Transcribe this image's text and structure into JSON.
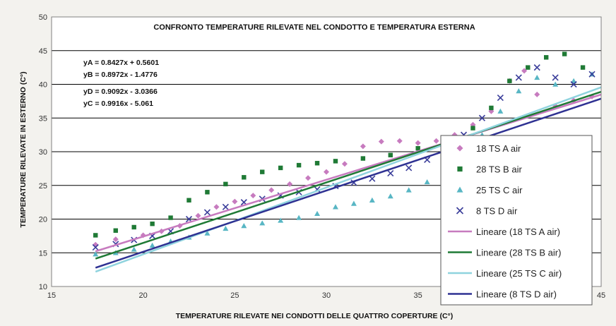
{
  "chart_data": {
    "type": "scatter",
    "title": "CONFRONTO TEMPERATURE RILEVATE NEL CONDOTTO E TEMPERATURA ESTERNA",
    "xlabel": "TEMPERATURE RILEVATE NEI CONDOTTI DELLE QUATTRO COPERTURE (C°)",
    "ylabel": "TEMPERATURE RILEVATE IN ESTERNO (C°)",
    "xlim": [
      15,
      45
    ],
    "ylim": [
      10,
      50
    ],
    "xticks": [
      "15",
      "20",
      "25",
      "30",
      "35",
      "40",
      "45"
    ],
    "yticks": [
      "10",
      "15",
      "20",
      "25",
      "30",
      "35",
      "40",
      "45",
      "50"
    ],
    "grid": "horizontal",
    "legend_position": "right",
    "equations": [
      "yA = 0.8427x + 0.5601",
      "yB = 0.8972x - 1.4776",
      "yD = 0.9092x - 3.0366",
      "yC = 0.9916x - 5.061"
    ],
    "series": [
      {
        "name": "18 TS A air",
        "marker": "diamond",
        "color": "#c77bbf",
        "points": [
          [
            17.4,
            16.2
          ],
          [
            18.5,
            17.0
          ],
          [
            20,
            17.6
          ],
          [
            21,
            18.2
          ],
          [
            22,
            19.0
          ],
          [
            23,
            20.5
          ],
          [
            24,
            21.8
          ],
          [
            25,
            22.6
          ],
          [
            26,
            23.5
          ],
          [
            27,
            24.3
          ],
          [
            28,
            25.2
          ],
          [
            29,
            26.1
          ],
          [
            30,
            27.0
          ],
          [
            31,
            28.2
          ],
          [
            32,
            30.8
          ],
          [
            33,
            31.5
          ],
          [
            34,
            31.6
          ],
          [
            35,
            31.3
          ],
          [
            36,
            31.6
          ],
          [
            37,
            32.5
          ],
          [
            38,
            34.0
          ],
          [
            39,
            36.0
          ],
          [
            40,
            40.5
          ],
          [
            40.8,
            42.0
          ],
          [
            41.5,
            38.5
          ],
          [
            42.5,
            36.8
          ],
          [
            43.5,
            37.6
          ],
          [
            44.5,
            38.2
          ]
        ]
      },
      {
        "name": "28 TS B air",
        "marker": "square",
        "color": "#1f7a35",
        "points": [
          [
            17.4,
            17.6
          ],
          [
            18.5,
            18.3
          ],
          [
            19.5,
            18.8
          ],
          [
            20.5,
            19.3
          ],
          [
            21.5,
            20.2
          ],
          [
            22.5,
            22.8
          ],
          [
            23.5,
            24.0
          ],
          [
            24.5,
            25.2
          ],
          [
            25.5,
            26.2
          ],
          [
            26.5,
            27.0
          ],
          [
            27.5,
            27.6
          ],
          [
            28.5,
            28.0
          ],
          [
            29.5,
            28.3
          ],
          [
            30.5,
            28.6
          ],
          [
            32,
            29.0
          ],
          [
            33.5,
            29.5
          ],
          [
            35,
            30.5
          ],
          [
            36.5,
            31.5
          ],
          [
            38,
            33.5
          ],
          [
            39,
            36.5
          ],
          [
            40,
            40.5
          ],
          [
            41,
            42.5
          ],
          [
            42,
            44.0
          ],
          [
            43,
            44.5
          ],
          [
            44,
            42.5
          ]
        ]
      },
      {
        "name": "25 TS C air",
        "marker": "triangle",
        "color": "#58b6c4",
        "points": [
          [
            17.4,
            14.8
          ],
          [
            18.5,
            15.0
          ],
          [
            19.5,
            15.5
          ],
          [
            20.5,
            16.1
          ],
          [
            21.5,
            16.7
          ],
          [
            22.5,
            17.3
          ],
          [
            23.5,
            17.9
          ],
          [
            24.5,
            18.6
          ],
          [
            25.5,
            19.0
          ],
          [
            26.5,
            19.4
          ],
          [
            27.5,
            19.8
          ],
          [
            28.5,
            20.2
          ],
          [
            29.5,
            20.8
          ],
          [
            30.5,
            21.8
          ],
          [
            31.5,
            22.3
          ],
          [
            32.5,
            22.8
          ],
          [
            33.5,
            23.4
          ],
          [
            34.5,
            24.3
          ],
          [
            35.5,
            25.5
          ],
          [
            36.5,
            27.0
          ],
          [
            37.5,
            29.5
          ],
          [
            38.5,
            32.5
          ],
          [
            39.5,
            36.0
          ],
          [
            40.5,
            39.0
          ],
          [
            41.5,
            41.0
          ],
          [
            42.5,
            40.0
          ],
          [
            43.5,
            40.5
          ],
          [
            44.5,
            41.5
          ]
        ]
      },
      {
        "name": "8 TS D air",
        "marker": "cross",
        "color": "#3a3d9a",
        "points": [
          [
            17.4,
            15.8
          ],
          [
            18.5,
            16.3
          ],
          [
            19.5,
            16.9
          ],
          [
            20.5,
            17.5
          ],
          [
            21.5,
            18.2
          ],
          [
            22.5,
            20.0
          ],
          [
            23.5,
            21.0
          ],
          [
            24.5,
            21.8
          ],
          [
            25.5,
            22.5
          ],
          [
            26.5,
            23.0
          ],
          [
            27.5,
            23.5
          ],
          [
            28.5,
            24.0
          ],
          [
            29.5,
            24.4
          ],
          [
            30.5,
            24.9
          ],
          [
            31.5,
            25.4
          ],
          [
            32.5,
            26.0
          ],
          [
            33.5,
            26.8
          ],
          [
            34.5,
            27.6
          ],
          [
            35.5,
            28.8
          ],
          [
            36.5,
            30.5
          ],
          [
            37.5,
            32.5
          ],
          [
            38.5,
            35.0
          ],
          [
            39.5,
            38.0
          ],
          [
            40.5,
            41.0
          ],
          [
            41.5,
            42.5
          ],
          [
            42.5,
            41.0
          ],
          [
            43.5,
            40.0
          ],
          [
            44.5,
            41.5
          ]
        ]
      }
    ],
    "trendlines": [
      {
        "name": "Lineare (18 TS A air)",
        "slope": 0.8427,
        "intercept": 0.5601,
        "color": "#c77bbf"
      },
      {
        "name": "Lineare (28 TS B air)",
        "slope": 0.8972,
        "intercept": -1.4776,
        "color": "#1f7a35"
      },
      {
        "name": "Lineare (25 TS C air)",
        "slope": 0.9916,
        "intercept": -5.061,
        "color": "#8fd3de"
      },
      {
        "name": "Lineare (8 TS D air)",
        "slope": 0.9092,
        "intercept": -3.0366,
        "color": "#2e3192"
      }
    ],
    "trend_x_range": [
      17.4,
      45
    ]
  }
}
